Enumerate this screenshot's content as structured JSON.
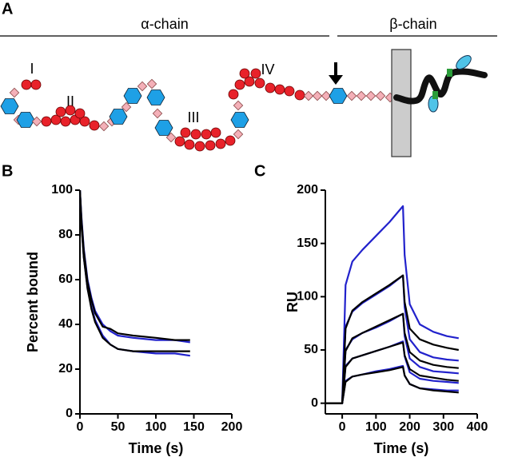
{
  "diagram": {
    "panel_label": "A",
    "alpha_label": "α-chain",
    "beta_label": "β-chain",
    "region_labels": [
      "I",
      "II",
      "III",
      "IV"
    ]
  },
  "chart_data": [
    {
      "type": "line",
      "panel_label": "B",
      "x_label": "Time (s)",
      "y_label": "Percent bound",
      "x": [
        0,
        2,
        5,
        10,
        15,
        20,
        30,
        40,
        50,
        70,
        100,
        125,
        145
      ],
      "series": [
        {
          "color": "#2222cc",
          "values": [
            100,
            88,
            74,
            60,
            52,
            46,
            40,
            37,
            35,
            34,
            33,
            33,
            32
          ]
        },
        {
          "color": "#2222cc",
          "values": [
            100,
            85,
            70,
            56,
            48,
            42,
            35,
            31,
            29,
            28,
            27,
            27,
            26
          ]
        },
        {
          "color": "#000000",
          "values": [
            100,
            87,
            73,
            59,
            51,
            45,
            39,
            38,
            36,
            35,
            34,
            33,
            33
          ]
        },
        {
          "color": "#000000",
          "values": [
            100,
            84,
            70,
            56,
            47,
            41,
            34,
            31,
            29,
            28,
            28,
            28,
            28
          ]
        }
      ],
      "xlim": [
        0,
        200
      ],
      "xticks": [
        0,
        50,
        100,
        150,
        200
      ],
      "ylim": [
        0,
        100
      ],
      "yticks": [
        0,
        20,
        40,
        60,
        80,
        100
      ]
    },
    {
      "type": "line",
      "panel_label": "C",
      "x_label": "Time (s)",
      "y_label": "RU",
      "x": [
        -50,
        -5,
        0,
        10,
        30,
        60,
        100,
        140,
        180,
        185,
        200,
        230,
        270,
        310,
        345
      ],
      "series": [
        {
          "color": "#2222cc",
          "values": [
            0,
            0,
            0,
            111,
            133,
            144,
            157,
            170,
            185,
            139,
            93,
            74,
            67,
            63,
            61
          ]
        },
        {
          "color": "#2222cc",
          "values": [
            0,
            0,
            0,
            72,
            86,
            94,
            102,
            110,
            120,
            90,
            60,
            48,
            43,
            41,
            40
          ]
        },
        {
          "color": "#2222cc",
          "values": [
            0,
            0,
            0,
            50,
            60,
            66,
            71,
            77,
            84,
            63,
            42,
            34,
            30,
            29,
            28
          ]
        },
        {
          "color": "#2222cc",
          "values": [
            0,
            0,
            0,
            35,
            42,
            45,
            49,
            53,
            58,
            44,
            29,
            23,
            21,
            20,
            19
          ]
        },
        {
          "color": "#2222cc",
          "values": [
            0,
            0,
            0,
            21,
            25,
            27,
            30,
            32,
            35,
            26,
            18,
            14,
            13,
            12,
            12
          ]
        },
        {
          "color": "#000000",
          "values": [
            0,
            0,
            0,
            70,
            87,
            95,
            103,
            111,
            120,
            95,
            70,
            60,
            55,
            52,
            50
          ]
        },
        {
          "color": "#000000",
          "values": [
            0,
            0,
            0,
            49,
            61,
            66,
            72,
            78,
            84,
            66,
            48,
            40,
            36,
            34,
            33
          ]
        },
        {
          "color": "#000000",
          "values": [
            0,
            0,
            0,
            34,
            42,
            45,
            49,
            53,
            57,
            45,
            32,
            26,
            24,
            22,
            21
          ]
        },
        {
          "color": "#000000",
          "values": [
            0,
            0,
            0,
            20,
            25,
            27,
            29,
            31,
            34,
            26,
            18,
            14,
            12,
            11,
            10
          ]
        }
      ],
      "xlim": [
        -50,
        400
      ],
      "xticks": [
        0,
        100,
        200,
        300,
        400
      ],
      "ylim": [
        -10,
        200
      ],
      "yticks": [
        0,
        50,
        100,
        150,
        200
      ]
    }
  ]
}
